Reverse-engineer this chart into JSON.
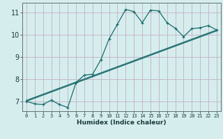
{
  "xlabel": "Humidex (Indice chaleur)",
  "xlim": [
    -0.5,
    23.5
  ],
  "ylim": [
    6.55,
    11.45
  ],
  "yticks": [
    7,
    8,
    9,
    10,
    11
  ],
  "xticks": [
    0,
    1,
    2,
    3,
    4,
    5,
    6,
    7,
    8,
    9,
    10,
    11,
    12,
    13,
    14,
    15,
    16,
    17,
    18,
    19,
    20,
    21,
    22,
    23
  ],
  "bg_color": "#d6edee",
  "grid_color": "#c4b8c8",
  "line_color": "#1a6b6b",
  "curve_x": [
    0,
    1,
    2,
    3,
    4,
    5,
    6,
    7,
    8,
    9,
    10,
    11,
    12,
    13,
    14,
    15,
    16,
    17,
    18,
    19,
    20,
    21,
    22,
    23
  ],
  "curve_y": [
    7.0,
    6.88,
    6.85,
    7.05,
    6.85,
    6.72,
    7.85,
    8.18,
    8.22,
    8.88,
    9.82,
    10.48,
    11.15,
    11.05,
    10.55,
    11.12,
    11.08,
    10.55,
    10.3,
    9.92,
    10.28,
    10.32,
    10.42,
    10.22
  ],
  "linear1_y_start": 7.0,
  "linear1_y_end": 10.18,
  "linear2_y_start": 7.04,
  "linear2_y_end": 10.22
}
